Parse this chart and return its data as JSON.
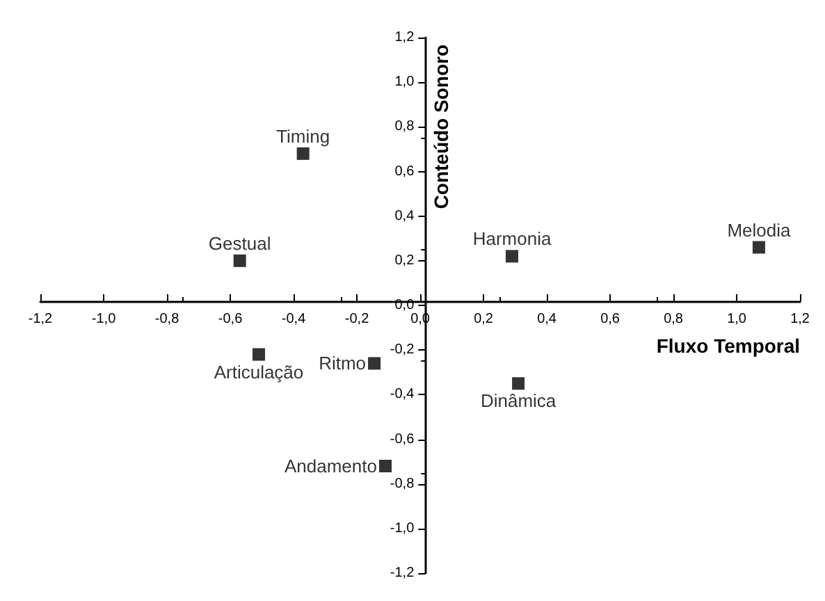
{
  "chart_data": {
    "type": "scatter",
    "xlabel": "Fluxo Temporal",
    "ylabel": "Conteúdo Sonoro",
    "marker": "square",
    "series": [
      {
        "color": "#000000",
        "x": [
          -0.37,
          -0.57,
          0.29,
          1.07,
          -0.51,
          -0.145,
          -0.11,
          0.31
        ],
        "values": [
          0.68,
          0.2,
          0.22,
          0.26,
          -0.22,
          -0.26,
          -0.72,
          -0.35
        ]
      }
    ],
    "annotations": [
      {
        "text": "Timing",
        "x": -0.37,
        "y": 0.68
      },
      {
        "text": "Gestual",
        "x": -0.57,
        "y": 0.2
      },
      {
        "text": "Harmonia",
        "x": 0.29,
        "y": 0.22
      },
      {
        "text": "Melodia",
        "x": 1.07,
        "y": 0.26
      },
      {
        "text": "Articulação",
        "x": -0.51,
        "y": -0.22
      },
      {
        "text": "Ritmo",
        "x": -0.145,
        "y": -0.26
      },
      {
        "text": "Andamento",
        "x": -0.11,
        "y": -0.72
      },
      {
        "text": "Dinâmica",
        "x": 0.31,
        "y": -0.35
      }
    ],
    "xlim": [
      -1.2,
      1.2
    ],
    "ylim": [
      -1.2,
      1.2
    ],
    "xticks": [
      {
        "value": -1.2,
        "label": "-1,2"
      },
      {
        "value": -1.0,
        "label": "-1,0"
      },
      {
        "value": -0.8,
        "label": "-0,8"
      },
      {
        "value": -0.6,
        "label": "-0,6"
      },
      {
        "value": -0.4,
        "label": "-0,4"
      },
      {
        "value": -0.2,
        "label": "-0,2"
      },
      {
        "value": 0,
        "label": "0,0"
      },
      {
        "value": 0.2,
        "label": "0,2"
      },
      {
        "value": 0.4,
        "label": "0,4"
      },
      {
        "value": 0.6,
        "label": "0,6"
      },
      {
        "value": 0.8,
        "label": "0,8"
      },
      {
        "value": 1.0,
        "label": "1,0"
      },
      {
        "value": 1.2,
        "label": "1,2"
      }
    ],
    "yticks": [
      {
        "value": -1.2,
        "label": "-1,2"
      },
      {
        "value": -1.0,
        "label": "-1,0"
      },
      {
        "value": -0.8,
        "label": "-0,8"
      },
      {
        "value": -0.6,
        "label": "-0,6"
      },
      {
        "value": -0.4,
        "label": "-0,4"
      },
      {
        "value": -0.2,
        "label": "-0,2"
      },
      {
        "value": 0,
        "label": "0,0"
      },
      {
        "value": 0.2,
        "label": "0,2"
      },
      {
        "value": 0.4,
        "label": "0,4"
      },
      {
        "value": 0.6,
        "label": "0,6"
      },
      {
        "value": 0.8,
        "label": "0,8"
      },
      {
        "value": 1.0,
        "label": "1,0"
      },
      {
        "value": 1.2,
        "label": "1,2"
      }
    ]
  }
}
